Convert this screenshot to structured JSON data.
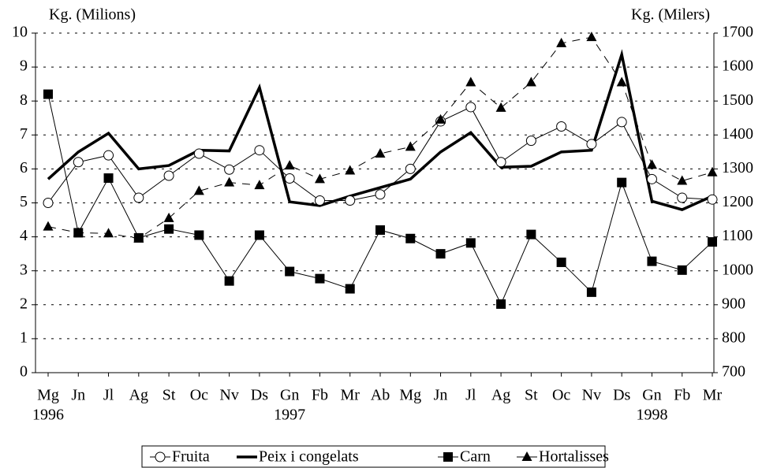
{
  "chart_data": {
    "type": "line",
    "y_label": "Kg. (Milions)",
    "y2_label": "Kg. (Milers)",
    "categories": [
      "Mg",
      "Jn",
      "Jl",
      "Ag",
      "St",
      "Oc",
      "Nv",
      "Ds",
      "Gn",
      "Fb",
      "Mr",
      "Ab",
      "Mg",
      "Jn",
      "Jl",
      "Ag",
      "St",
      "Oc",
      "Nv",
      "Ds",
      "Gn",
      "Fb",
      "Mr"
    ],
    "years": [
      "1996",
      null,
      null,
      null,
      null,
      null,
      null,
      null,
      "1997",
      null,
      null,
      null,
      null,
      null,
      null,
      null,
      null,
      null,
      null,
      null,
      "1998",
      null,
      null
    ],
    "ylim": [
      0,
      10
    ],
    "yticks": [
      0,
      1,
      2,
      3,
      4,
      5,
      6,
      7,
      8,
      9,
      10
    ],
    "y2lim": [
      700,
      1700
    ],
    "y2ticks": [
      700,
      800,
      900,
      1000,
      1100,
      1200,
      1300,
      1400,
      1500,
      1600,
      1700
    ],
    "grid": true,
    "legend": "bottom",
    "series": [
      {
        "name": "Fruita",
        "color": "#000000",
        "marker": "circle",
        "values": [
          5.0,
          6.2,
          6.4,
          5.15,
          5.8,
          6.45,
          5.98,
          6.55,
          5.72,
          5.07,
          5.07,
          5.25,
          6.0,
          7.4,
          7.82,
          6.2,
          6.83,
          7.25,
          6.73,
          7.38,
          5.7,
          5.15,
          5.1
        ]
      },
      {
        "name": "Peix i congelats",
        "color": "#000000",
        "marker": "none",
        "axis": "y2",
        "values": [
          1270,
          1350,
          1405,
          1300,
          1310,
          1355,
          1353,
          1540,
          1203,
          1192,
          1220,
          1245,
          1270,
          1350,
          1407,
          1305,
          1308,
          1350,
          1355,
          1637,
          1205,
          1180,
          1220
        ]
      },
      {
        "name": "Carn",
        "color": "#000000",
        "marker": "square",
        "axis": "y2",
        "values": [
          1520,
          1112,
          1273,
          1097,
          1123,
          1105,
          970,
          1105,
          998,
          977,
          947,
          1120,
          1095,
          1050,
          1082,
          902,
          1107,
          1025,
          937,
          1260,
          1028,
          1002,
          1085
        ]
      },
      {
        "name": "Hortalisses",
        "color": "#000000",
        "marker": "triangle",
        "dashed": true,
        "values": [
          4.3,
          4.12,
          4.1,
          3.95,
          4.55,
          5.35,
          5.6,
          5.52,
          6.1,
          5.7,
          5.95,
          6.45,
          6.65,
          7.45,
          8.55,
          7.8,
          8.55,
          9.7,
          9.88,
          8.55,
          6.12,
          5.65,
          5.9
        ]
      }
    ]
  }
}
